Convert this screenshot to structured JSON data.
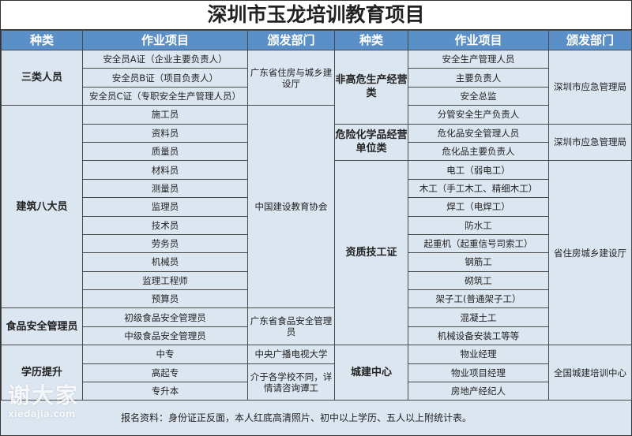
{
  "title": "深圳市玉龙培训教育项目",
  "headers": [
    "种类",
    "作业项目",
    "颁发部门",
    "种类",
    "作业项目",
    "颁发部门"
  ],
  "left_groups": [
    {
      "category": "三类人员",
      "items": [
        "安全员A证（企业主要负责人）",
        "安全员B证（项目负责人）",
        "安全员C证（专职安全生产管理人员）"
      ],
      "issuers": [
        {
          "text": "广东省住房与城乡建设厅",
          "span": 3
        }
      ]
    },
    {
      "category": "建筑八大员",
      "items": [
        "施工员",
        "资料员",
        "质量员",
        "材料员",
        "测量员",
        "监理员",
        "技术员",
        "劳务员",
        "机械员",
        "监理工程师",
        "预算员"
      ],
      "issuers": [
        {
          "text": "中国建设教育协会",
          "span": 11
        }
      ]
    },
    {
      "category": "食品安全管理员",
      "items": [
        "初级食品安全管理员",
        "中级食品安全管理员"
      ],
      "issuers": [
        {
          "text": "广东省食品安全管理员",
          "span": 2
        }
      ]
    },
    {
      "category": "学历提升",
      "items": [
        "中专",
        "高起专",
        "专升本"
      ],
      "issuers": [
        {
          "text": "中央广播电视大学",
          "span": 1
        },
        {
          "text": "介于各学校不同，详情请咨询谭工",
          "span": 2
        }
      ]
    }
  ],
  "right_groups": [
    {
      "category": "非高危生产经营类",
      "items": [
        "安全生产管理人员",
        "主要负责人",
        "安全总监",
        "分管安全生产负责人"
      ],
      "issuers": [
        {
          "text": "深圳市应急管理局",
          "span": 4
        }
      ]
    },
    {
      "category": "危险化学品经营单位类",
      "items": [
        "危化品安全管理人员",
        "危化品主要负责人"
      ],
      "issuers": [
        {
          "text": "深圳市应急管理局",
          "span": 2
        }
      ]
    },
    {
      "category": "资质技工证",
      "items": [
        "电工（弱电工）",
        "木工（手工木工、精细木工）",
        "焊工（电焊工）",
        "防水工",
        "起重机（起重信号司索工）",
        "钢筋工",
        "砌筑工",
        "架子工(普通架子工）",
        "混凝土工",
        "机械设备安装工等等"
      ],
      "issuers": [
        {
          "text": "省住房城乡建设厅",
          "span": 10
        }
      ]
    },
    {
      "category": "城建中心",
      "items": [
        "物业经理",
        "物业项目经理",
        "房地产经纪人"
      ],
      "issuers": [
        {
          "text": "全国城建培训中心",
          "span": 3
        }
      ]
    }
  ],
  "footer": "报名资料：身份证正反面，本人红底高清照片、初中以上学历、五人以上附统计表。",
  "watermark": {
    "main": "谢大家",
    "sub": "xiedajia.com"
  },
  "colors": {
    "header_bg": "#5b8fc7",
    "cell_bg": "#dce6f1"
  }
}
